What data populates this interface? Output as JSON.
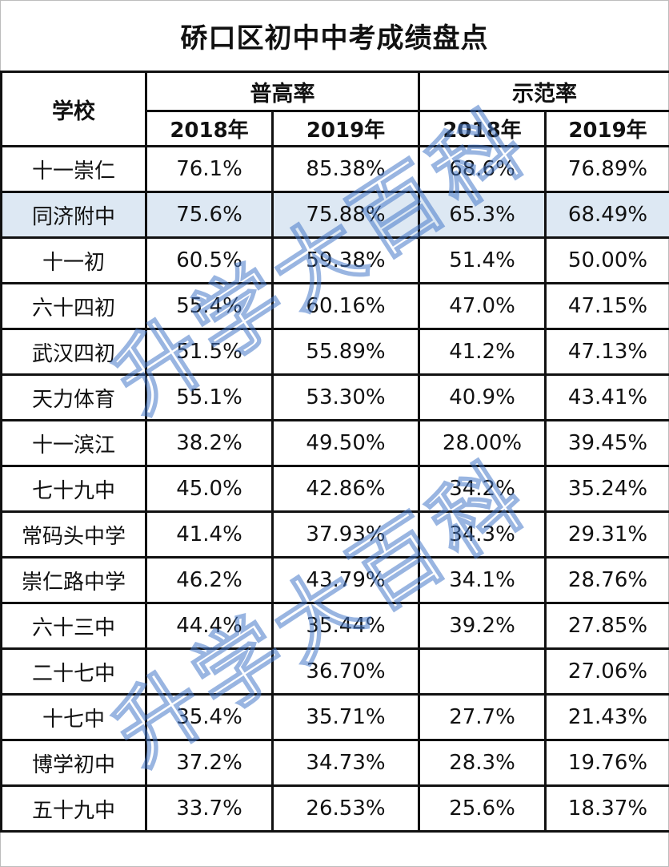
{
  "title": "硚口区初中中考成绩盘点",
  "header": {
    "school": "学校",
    "groups": [
      "普高率",
      "示范率"
    ],
    "years": [
      "2018年",
      "2019年",
      "2018年",
      "2019年"
    ]
  },
  "rows": [
    {
      "school": "十一崇仁",
      "pg2018": "76.1%",
      "pg2019": "85.38%",
      "sf2018": "68.6%",
      "sf2019": "76.89%"
    },
    {
      "school": "同济附中",
      "pg2018": "75.6%",
      "pg2019": "75.88%",
      "sf2018": "65.3%",
      "sf2019": "68.49%"
    },
    {
      "school": "十一初",
      "pg2018": "60.5%",
      "pg2019": "59.38%",
      "sf2018": "51.4%",
      "sf2019": "50.00%"
    },
    {
      "school": "六十四初",
      "pg2018": "55.4%",
      "pg2019": "60.16%",
      "sf2018": "47.0%",
      "sf2019": "47.15%"
    },
    {
      "school": "武汉四初",
      "pg2018": "51.5%",
      "pg2019": "55.89%",
      "sf2018": "41.2%",
      "sf2019": "47.13%"
    },
    {
      "school": "天力体育",
      "pg2018": "55.1%",
      "pg2019": "53.30%",
      "sf2018": "40.9%",
      "sf2019": "43.41%"
    },
    {
      "school": "十一滨江",
      "pg2018": "38.2%",
      "pg2019": "49.50%",
      "sf2018": "28.00%",
      "sf2019": "39.45%"
    },
    {
      "school": "七十九中",
      "pg2018": "45.0%",
      "pg2019": "42.86%",
      "sf2018": "34.2%",
      "sf2019": "35.24%"
    },
    {
      "school": "常码头中学",
      "pg2018": "41.4%",
      "pg2019": "37.93%",
      "sf2018": "34.3%",
      "sf2019": "29.31%"
    },
    {
      "school": "崇仁路中学",
      "pg2018": "46.2%",
      "pg2019": "43.79%",
      "sf2018": "34.1%",
      "sf2019": "28.76%"
    },
    {
      "school": "六十三中",
      "pg2018": "44.4%",
      "pg2019": "35.44%",
      "sf2018": "39.2%",
      "sf2019": "27.85%"
    },
    {
      "school": "二十七中",
      "pg2018": "",
      "pg2019": "36.70%",
      "sf2018": "",
      "sf2019": "27.06%"
    },
    {
      "school": "十七中",
      "pg2018": "35.4%",
      "pg2019": "35.71%",
      "sf2018": "27.7%",
      "sf2019": "21.43%"
    },
    {
      "school": "博学初中",
      "pg2018": "37.2%",
      "pg2019": "34.73%",
      "sf2018": "28.3%",
      "sf2019": "19.76%"
    },
    {
      "school": "五十九中",
      "pg2018": "33.7%",
      "pg2019": "26.53%",
      "sf2018": "25.6%",
      "sf2019": "18.37%"
    }
  ],
  "highlight_row_color": "#dde8f3",
  "watermark": "升学大百科"
}
